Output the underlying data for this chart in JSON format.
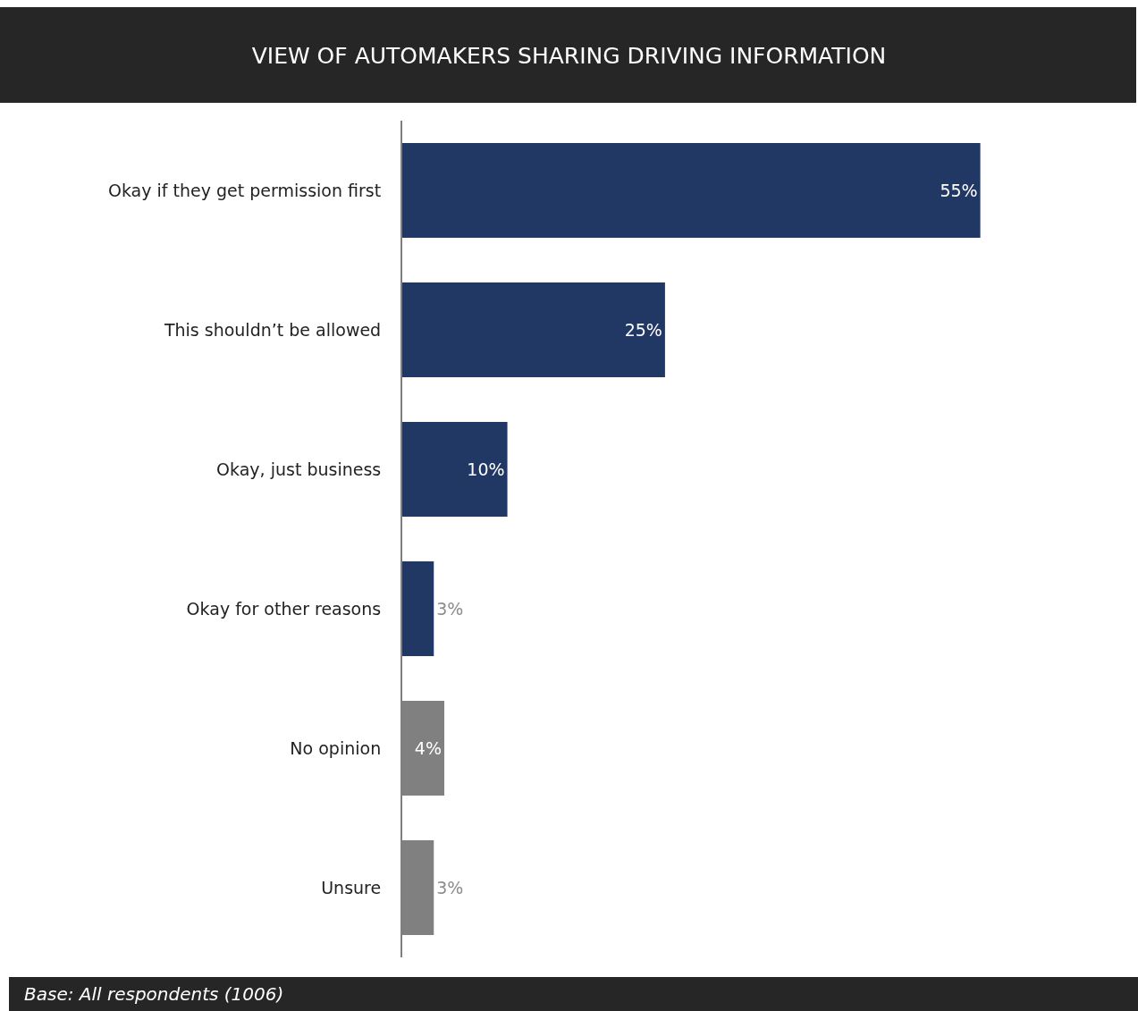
{
  "chart_data": {
    "type": "bar",
    "orientation": "horizontal",
    "title": "VIEW OF AUTOMAKERS SHARING DRIVING INFORMATION",
    "categories": [
      "Okay if they get permission first",
      "This shouldn’t be allowed",
      "Okay, just business",
      "Okay for other reasons",
      "No opinion",
      "Unsure"
    ],
    "values": [
      55,
      25,
      10,
      3,
      4,
      3
    ],
    "colors": [
      "#213864",
      "#213864",
      "#213864",
      "#213864",
      "#808080",
      "#808080"
    ],
    "value_labels": [
      "55%",
      "25%",
      "10%",
      "3%",
      "4%",
      "3%"
    ],
    "annotations": [
      "Base: All respondents (1006)"
    ]
  }
}
